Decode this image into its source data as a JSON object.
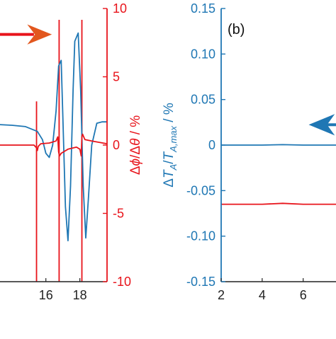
{
  "colors": {
    "blue": "#1f77b4",
    "red": "#e8141b",
    "axis_black": "#222222",
    "arrow_orange": "#e2571e"
  },
  "chart_data": [
    {
      "type": "line",
      "panel": "a",
      "title": "",
      "xlabel": "",
      "x_ticks": [
        16,
        18
      ],
      "xlim": [
        13.3,
        19.6
      ],
      "y_right": {
        "label_parts": [
          "Δ",
          "ϕ",
          "/Δ",
          "θ",
          " / %"
        ],
        "ticks": [
          "10",
          "5",
          "0",
          "-5",
          "-10"
        ],
        "tick_values": [
          10,
          5,
          0,
          -5,
          -10
        ],
        "ylim": [
          -10,
          10
        ]
      },
      "series": [
        {
          "color_key": "blue",
          "axis": "right",
          "x": [
            13.3,
            14.0,
            14.8,
            15.5,
            15.8,
            16.0,
            16.2,
            16.4,
            16.6,
            16.75,
            16.9,
            17.0,
            17.15,
            17.3,
            17.45,
            17.6,
            17.7,
            17.9,
            18.05,
            18.2,
            18.35,
            18.5,
            18.7,
            19.0,
            19.3,
            19.6
          ],
          "y": [
            1.5,
            1.45,
            1.35,
            1.0,
            0.4,
            -0.6,
            -0.9,
            0.0,
            2.5,
            5.8,
            6.2,
            2.0,
            -4.5,
            -7.0,
            -3.0,
            4.0,
            7.6,
            8.2,
            4.0,
            -3.0,
            -6.8,
            -4.0,
            0.0,
            1.6,
            1.7,
            1.7
          ]
        },
        {
          "color_key": "red",
          "axis": "right",
          "x": [
            13.3,
            14.5,
            15.3,
            15.45,
            15.5,
            15.55,
            15.7,
            16.2,
            16.6,
            16.7,
            16.75,
            16.8,
            16.9,
            17.3,
            17.8,
            18.0,
            18.08,
            18.12,
            18.16,
            18.3,
            18.7,
            19.6
          ],
          "y": [
            0.0,
            0.0,
            0.0,
            -0.2,
            -0.4,
            -0.1,
            0.1,
            0.15,
            0.3,
            0.6,
            -0.5,
            -0.8,
            -0.6,
            -0.3,
            -0.15,
            -0.3,
            -0.8,
            0.6,
            0.8,
            0.4,
            0.3,
            0.1
          ]
        }
      ],
      "vertical_lines_x": [
        15.45,
        16.78,
        18.12
      ],
      "vertical_lines_color_key": "red",
      "annotations": [
        {
          "type": "arrow",
          "direction": "right",
          "color_key": "red",
          "fill_key": "arrow_orange",
          "x_start": 13.3,
          "x_end": 16.3,
          "y": 8.1
        }
      ]
    },
    {
      "type": "line",
      "panel": "b",
      "title": "",
      "panel_label": "(b)",
      "xlabel": "",
      "x_ticks": [
        "2",
        "4",
        "6"
      ],
      "x_tick_values": [
        2,
        4,
        6
      ],
      "xlim": [
        2,
        7.6
      ],
      "y_left": {
        "label_parts": [
          "Δ",
          "T",
          "A",
          "/",
          "T",
          "A,max",
          " / %"
        ],
        "ticks": [
          "0.15",
          "0.10",
          "0.05",
          "0",
          "-0.05",
          "-0.10",
          "-0.15"
        ],
        "tick_values": [
          0.15,
          0.1,
          0.05,
          0,
          -0.05,
          -0.1,
          -0.15
        ],
        "ylim": [
          -0.15,
          0.15
        ]
      },
      "series": [
        {
          "color_key": "blue",
          "axis": "left",
          "x": [
            2,
            3,
            4,
            5,
            6,
            7,
            7.6
          ],
          "y": [
            0.0,
            0.0,
            0.0,
            0.0005,
            0.0,
            0.0,
            0.0
          ]
        },
        {
          "color_key": "red",
          "axis": "left",
          "x": [
            2,
            3,
            4,
            5,
            6,
            7,
            7.6
          ],
          "y": [
            -0.065,
            -0.065,
            -0.065,
            -0.064,
            -0.065,
            -0.065,
            -0.065
          ]
        }
      ],
      "annotations": [
        {
          "type": "arrow",
          "direction": "left",
          "color_key": "blue",
          "x_start": 7.6,
          "x_end": 6.8,
          "y": 0.02
        }
      ]
    }
  ]
}
